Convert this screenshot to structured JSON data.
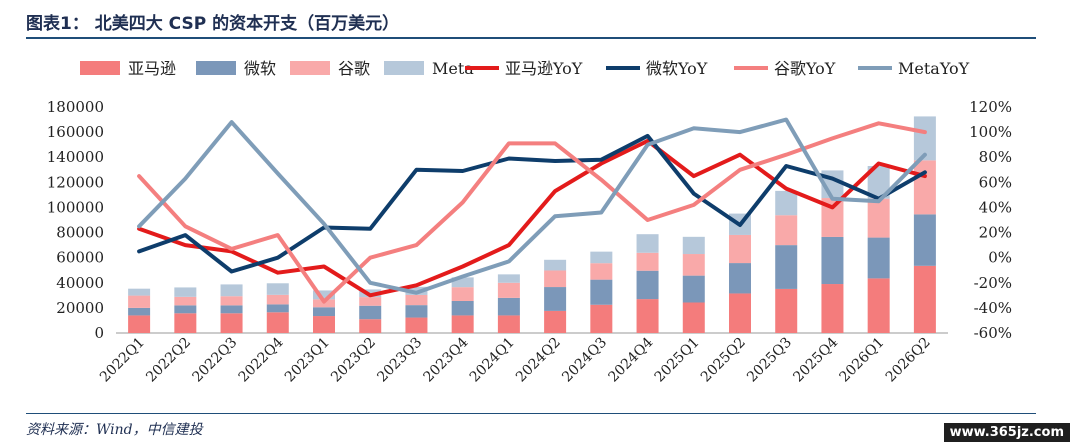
{
  "title": "图表1：   北美四大 CSP 的资本开支（百万美元）",
  "source": "资料来源：Wind，中信建投",
  "watermark": "www.365jz.com",
  "colors": {
    "amazon_bar": "#f47c7c",
    "microsoft_bar": "#7b97b9",
    "google_bar": "#f9a9a9",
    "meta_bar": "#b6c8da",
    "amazon_line": "#e31b1b",
    "microsoft_line": "#0e3d6b",
    "google_line": "#f47f7f",
    "meta_line": "#7f9db8"
  },
  "chart_data": {
    "type": "bar",
    "stacked": true,
    "categories": [
      "2022Q1",
      "2022Q2",
      "2022Q3",
      "2022Q4",
      "2023Q1",
      "2023Q2",
      "2023Q3",
      "2023Q4",
      "2024Q1",
      "2024Q2",
      "2024Q3",
      "2024Q4",
      "2025Q1",
      "2025Q2",
      "2025Q3",
      "2025Q4",
      "2026Q1",
      "2026Q2"
    ],
    "series": [
      {
        "name": "亚马逊",
        "type": "bar",
        "axis": "left",
        "values": [
          14000,
          15700,
          15700,
          16500,
          13500,
          11000,
          12300,
          14000,
          14000,
          17600,
          22500,
          27000,
          24300,
          31500,
          35100,
          39000,
          43500,
          53500
        ]
      },
      {
        "name": "微软",
        "type": "bar",
        "axis": "left",
        "values": [
          6000,
          6300,
          6300,
          6300,
          7000,
          10700,
          9900,
          11500,
          14000,
          19000,
          20000,
          22600,
          21400,
          24200,
          34900,
          37500,
          32500,
          41000
        ]
      },
      {
        "name": "谷歌",
        "type": "bar",
        "axis": "left",
        "values": [
          9800,
          6800,
          7300,
          7600,
          6300,
          6900,
          8100,
          11000,
          12000,
          13200,
          13100,
          14300,
          17200,
          22400,
          23800,
          31000,
          31000,
          43000
        ]
      },
      {
        "name": "Meta",
        "type": "bar",
        "axis": "left",
        "values": [
          5500,
          7500,
          9400,
          9200,
          7100,
          6100,
          6500,
          7800,
          6700,
          8500,
          9200,
          14800,
          13700,
          17000,
          19400,
          22000,
          26000,
          35000
        ]
      },
      {
        "name": "亚马逊YoY",
        "type": "line",
        "axis": "right",
        "values": [
          23,
          10,
          5,
          -12,
          -7,
          -30,
          -22,
          -7,
          10,
          53,
          75,
          93,
          65,
          82,
          55,
          40,
          75,
          65
        ]
      },
      {
        "name": "微软YoY",
        "type": "line",
        "axis": "right",
        "values": [
          5,
          18,
          -11,
          0,
          24,
          23,
          70,
          69,
          79,
          77,
          78,
          97,
          51,
          26,
          73,
          63,
          47,
          68
        ]
      },
      {
        "name": "谷歌YoY",
        "type": "line",
        "axis": "right",
        "values": [
          65,
          25,
          7,
          18,
          -35,
          0,
          10,
          44,
          91,
          91,
          62,
          30,
          42,
          70,
          82,
          95,
          107,
          100
        ]
      },
      {
        "name": "MetaYoY",
        "type": "line",
        "axis": "right",
        "values": [
          25,
          63,
          108,
          67,
          27,
          -20,
          -28,
          -15,
          -3,
          33,
          36,
          90,
          103,
          100,
          110,
          47,
          45,
          82
        ]
      }
    ],
    "y_left": {
      "min": 0,
      "max": 180000,
      "step": 20000,
      "ticks": [
        "0",
        "20000",
        "40000",
        "60000",
        "80000",
        "100000",
        "120000",
        "140000",
        "160000",
        "180000"
      ]
    },
    "y_right": {
      "min": -60,
      "max": 120,
      "step": 20,
      "ticks": [
        "-60%",
        "-40%",
        "-20%",
        "0%",
        "20%",
        "40%",
        "60%",
        "80%",
        "100%",
        "120%"
      ]
    },
    "legend_position": "top",
    "grid": false
  }
}
